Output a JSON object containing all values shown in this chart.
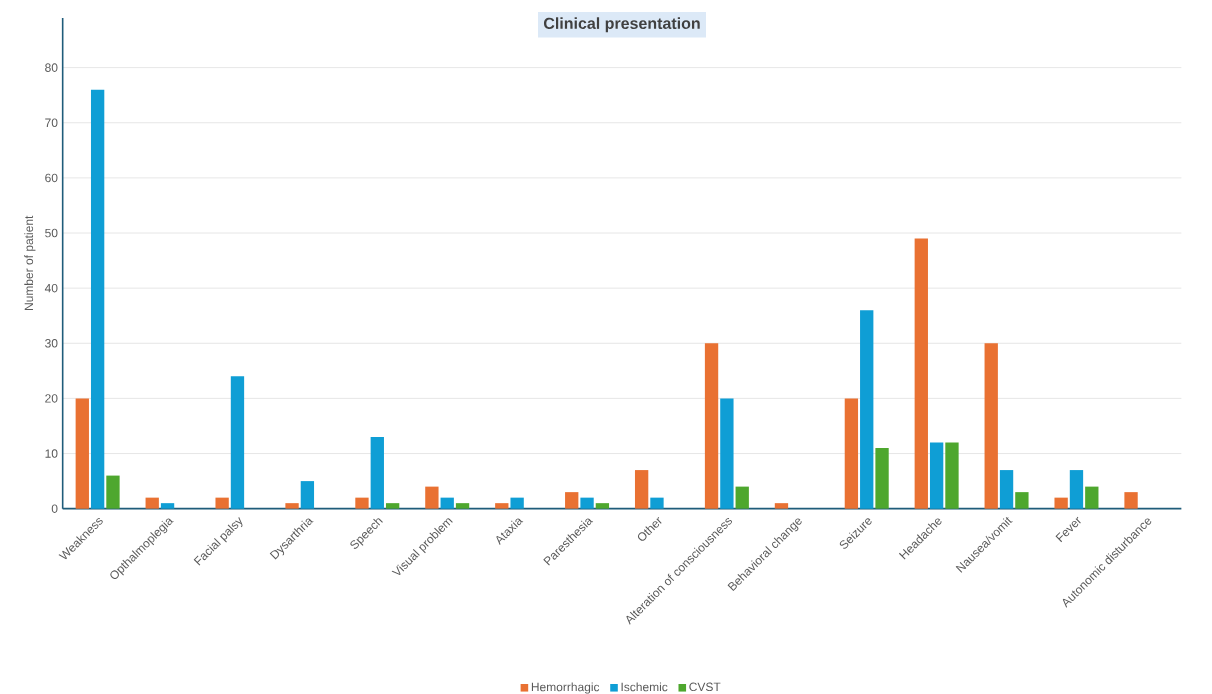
{
  "chart_data": {
    "type": "bar",
    "title": "Clinical presentation",
    "ylabel": "Number of patient",
    "categories": [
      "Weakness",
      "Opthalmoplegia",
      "Facial palsy",
      "Dysarthria",
      "Speech",
      "Visual problem",
      "Ataxia",
      "Paresthesia",
      "Other",
      "Alteration of consciousness",
      "Behavioral change",
      "Seizure",
      "Headache",
      "Nausea/vomit",
      "Fever",
      "Autonomic disturbance"
    ],
    "series": [
      {
        "name": "Hemorrhagic",
        "color": "#e97132",
        "values": [
          20,
          2,
          2,
          1,
          2,
          4,
          1,
          3,
          7,
          30,
          1,
          20,
          49,
          30,
          2,
          3
        ]
      },
      {
        "name": "Ischemic",
        "color": "#0f9ed5",
        "values": [
          76,
          1,
          24,
          5,
          13,
          2,
          2,
          2,
          2,
          20,
          0,
          36,
          12,
          7,
          7,
          0
        ]
      },
      {
        "name": "CVST",
        "color": "#4ea72e",
        "values": [
          6,
          0,
          0,
          0,
          1,
          1,
          0,
          1,
          0,
          4,
          0,
          11,
          12,
          3,
          4,
          0
        ]
      }
    ],
    "ylim": [
      0,
      89
    ],
    "yticks": [
      0,
      10,
      20,
      30,
      40,
      50,
      60,
      70,
      80
    ],
    "grid": "y",
    "legend": "bottom"
  }
}
